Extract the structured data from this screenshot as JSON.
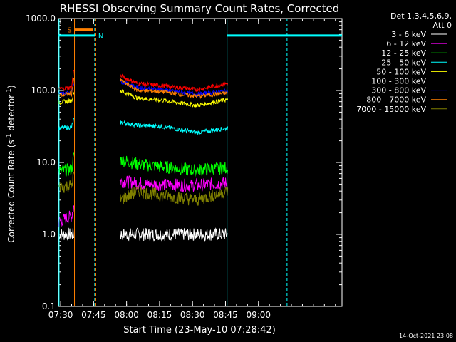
{
  "chart_data": {
    "type": "line",
    "title": "RHESSI Observing Summary Count Rates, Corrected",
    "xlabel": "Start Time (23-May-10 07:28:42)",
    "ylabel_main": "Corrected Count Rate (s",
    "ylabel_sup1": "-1",
    "ylabel_mid": " detector",
    "ylabel_sup2": "-1",
    "ylabel_end": ")",
    "y_scale": "log",
    "ylim": [
      0.1,
      1000
    ],
    "xlim_min": [
      449,
      578
    ],
    "x_ticks": [
      {
        "min": 450,
        "label": "07:30"
      },
      {
        "min": 465,
        "label": "07:45"
      },
      {
        "min": 480,
        "label": "08:00"
      },
      {
        "min": 495,
        "label": "08:15"
      },
      {
        "min": 510,
        "label": "08:30"
      },
      {
        "min": 525,
        "label": "08:45"
      },
      {
        "min": 540,
        "label": "09:00"
      }
    ],
    "y_ticks": [
      {
        "value": 0.1,
        "label": "0.1"
      },
      {
        "value": 1,
        "label": "1.0"
      },
      {
        "value": 10,
        "label": "10.0"
      },
      {
        "value": 100,
        "label": "100.0"
      },
      {
        "value": 1000,
        "label": "1000.0"
      }
    ],
    "legend": {
      "header1": "Det 1,3,4,5,6,9,",
      "header2": "Att 0",
      "placement": "right"
    },
    "segments": [
      [
        449,
        456
      ],
      [
        477,
        526
      ]
    ],
    "series": [
      {
        "name": "3 - 6 keV",
        "color": "#ffffff",
        "values": [
          [
            449,
            1.0
          ],
          [
            456,
            1.0
          ],
          [
            477,
            1.0
          ],
          [
            526,
            1.0
          ]
        ]
      },
      {
        "name": "6 - 12 keV",
        "color": "#ff00ff",
        "values": [
          [
            449,
            1.5
          ],
          [
            455,
            1.8
          ],
          [
            456,
            2.5
          ],
          [
            477,
            5.5
          ],
          [
            490,
            5.0
          ],
          [
            510,
            4.8
          ],
          [
            526,
            5.2
          ]
        ]
      },
      {
        "name": "12 - 25 keV",
        "color": "#00ff00",
        "values": [
          [
            449,
            7.5
          ],
          [
            455,
            8.0
          ],
          [
            456,
            12
          ],
          [
            477,
            11
          ],
          [
            485,
            9.5
          ],
          [
            500,
            8.5
          ],
          [
            510,
            7.8
          ],
          [
            526,
            8.5
          ]
        ]
      },
      {
        "name": "25 - 50 keV",
        "color": "#00ffff",
        "values": [
          [
            449,
            30
          ],
          [
            455,
            31
          ],
          [
            456,
            40
          ],
          [
            477,
            36
          ],
          [
            485,
            33
          ],
          [
            495,
            32
          ],
          [
            512,
            26
          ],
          [
            526,
            30
          ]
        ]
      },
      {
        "name": "50 - 100 keV",
        "color": "#ffff00",
        "values": [
          [
            449,
            68
          ],
          [
            455,
            72
          ],
          [
            456,
            95
          ],
          [
            477,
            100
          ],
          [
            485,
            78
          ],
          [
            495,
            74
          ],
          [
            512,
            62
          ],
          [
            526,
            75
          ]
        ]
      },
      {
        "name": "100 - 300 keV",
        "color": "#ff0000",
        "values": [
          [
            449,
            105
          ],
          [
            455,
            110
          ],
          [
            456,
            200
          ],
          [
            477,
            160
          ],
          [
            485,
            125
          ],
          [
            495,
            118
          ],
          [
            512,
            103
          ],
          [
            526,
            125
          ]
        ]
      },
      {
        "name": "300 - 800 keV",
        "color": "#0000ff",
        "values": [
          [
            449,
            90
          ],
          [
            455,
            95
          ],
          [
            456,
            130
          ],
          [
            477,
            135
          ],
          [
            485,
            110
          ],
          [
            495,
            104
          ],
          [
            512,
            88
          ],
          [
            526,
            100
          ]
        ]
      },
      {
        "name": "800 - 7000 keV",
        "color": "#ff8000",
        "values": [
          [
            449,
            85
          ],
          [
            455,
            90
          ],
          [
            456,
            150
          ],
          [
            477,
            140
          ],
          [
            485,
            100
          ],
          [
            495,
            97
          ],
          [
            512,
            83
          ],
          [
            526,
            92
          ]
        ]
      },
      {
        "name": "7000 - 15000 keV",
        "color": "#808000",
        "values": [
          [
            449,
            4.5
          ],
          [
            455,
            4.8
          ],
          [
            456,
            7.0
          ],
          [
            477,
            3.0
          ],
          [
            485,
            4.0
          ],
          [
            495,
            3.5
          ],
          [
            512,
            3.0
          ],
          [
            526,
            4.0
          ]
        ]
      }
    ],
    "flags": [
      {
        "label": "S",
        "color": "#ff8000",
        "start": 456.3,
        "end": 464.7,
        "level": 700
      },
      {
        "label": "N",
        "color": "#00ffff",
        "start": 449,
        "end": 465.5,
        "level": 580
      },
      {
        "label": "",
        "color": "#00ffff",
        "start": 525.7,
        "end": 578,
        "level": 580
      }
    ],
    "vlines": [
      {
        "min": 449.3,
        "color": "#00ffff",
        "style": "solid"
      },
      {
        "min": 456.3,
        "color": "#ff8000",
        "style": "solid"
      },
      {
        "min": 465.5,
        "color": "#00ffff",
        "style": "dashed"
      },
      {
        "min": 466.0,
        "color": "#ff8000",
        "style": "dashed"
      },
      {
        "min": 525.7,
        "color": "#00ffff",
        "style": "solid"
      },
      {
        "min": 553.0,
        "color": "#00ffff",
        "style": "dashed"
      }
    ]
  },
  "footer": {
    "timestamp": "14-Oct-2021 23:08"
  }
}
